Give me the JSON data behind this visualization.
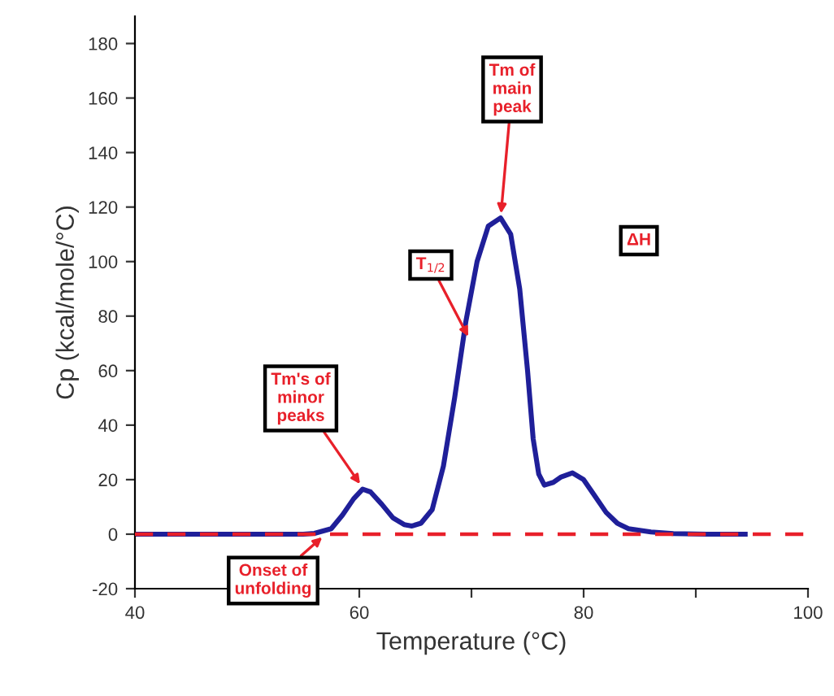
{
  "chart_data": {
    "type": "line",
    "xlabel": "Temperature (°C)",
    "ylabel": "Cp (kcal/mole/°C)",
    "x": [
      40,
      50,
      55,
      56,
      57.5,
      58.5,
      59.5,
      60.3,
      61,
      62,
      63,
      64,
      64.7,
      65.5,
      66.5,
      67.5,
      68.5,
      69.5,
      70.5,
      71.5,
      72.6,
      73.5,
      74.3,
      75,
      75.5,
      76,
      76.5,
      77.3,
      78,
      79,
      80,
      81,
      82,
      83,
      84,
      86,
      88,
      91,
      94.4
    ],
    "series": [
      {
        "color": "#1f1f99",
        "values": [
          0,
          0,
          0,
          0.3,
          2,
          7,
          13,
          16.5,
          15.5,
          11,
          6,
          3.5,
          3,
          4,
          9,
          25,
          50,
          78,
          100,
          113,
          116,
          110,
          90,
          60,
          35,
          22,
          18,
          19,
          21,
          22.5,
          20,
          14,
          8,
          4,
          2,
          0.8,
          0.2,
          0,
          0
        ]
      }
    ],
    "xlim": [
      40,
      100
    ],
    "xticks": [
      40,
      {
        "value": 50,
        "label": null
      },
      60,
      {
        "value": 70,
        "label": null
      },
      80,
      {
        "value": 90,
        "label": null
      },
      100
    ],
    "ylim": [
      -20,
      190
    ],
    "yticks": [
      -20,
      0,
      20,
      40,
      60,
      80,
      100,
      120,
      140,
      160,
      180
    ],
    "grid": false,
    "legend": false,
    "marker": "none",
    "line_style": "solid",
    "ref_lines": [
      {
        "axis": "y",
        "value": 0,
        "color": "#e8202a",
        "line_style": "dashed"
      }
    ],
    "annotations": [
      {
        "text": "Tm of\nmain\npeak",
        "x": 72.6,
        "y": 116
      },
      {
        "text": "T$_{1/2}$",
        "x": 69.9,
        "y": 71
      },
      {
        "text": "Tm's of\nminor\npeaks",
        "x": 60.3,
        "y": 17
      },
      {
        "text": "Onset of\nunfolding",
        "x": 57,
        "y": 0
      },
      "ΔH"
    ]
  }
}
